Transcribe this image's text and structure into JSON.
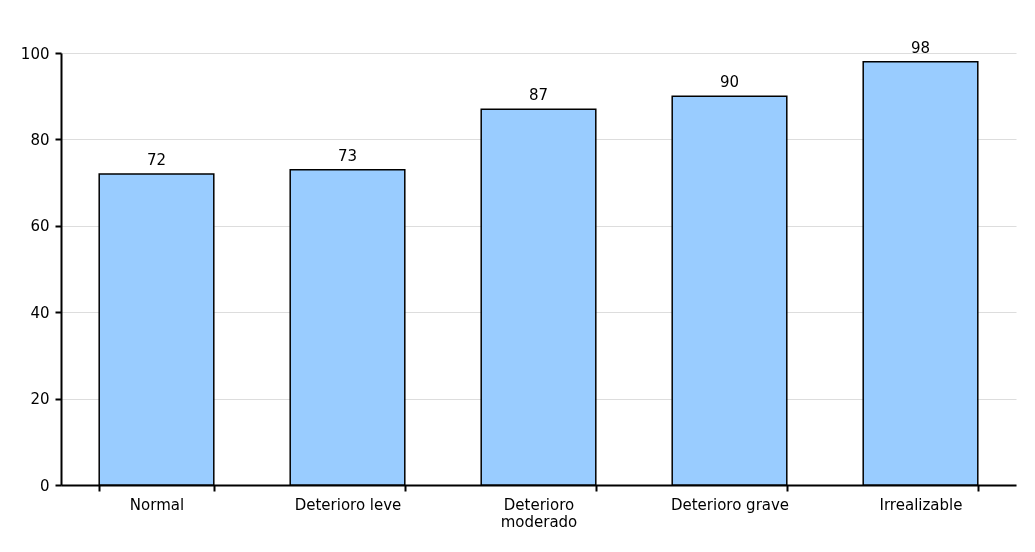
{
  "chart_data": {
    "type": "bar",
    "categories": [
      "Normal",
      "Deterioro leve",
      "Deterioro moderado",
      "Deterioro grave",
      "Irrealizable"
    ],
    "values": [
      72,
      73,
      87,
      90,
      98
    ],
    "color": "#99ccff",
    "ylim": [
      0,
      100
    ],
    "yticks": [
      0,
      20,
      40,
      60,
      80,
      100
    ],
    "grid": "y",
    "data_labels": true
  }
}
